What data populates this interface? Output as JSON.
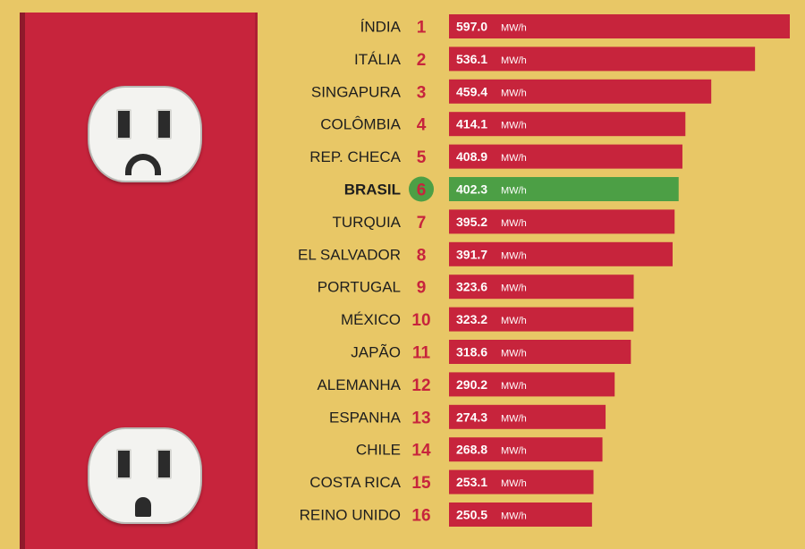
{
  "chart_data": {
    "type": "bar",
    "orientation": "horizontal",
    "unit": "MW/h",
    "xlim": [
      0,
      597.0
    ],
    "colors": {
      "bar": "#c7243c",
      "highlight": "#4c9f45",
      "rank": "#c7243c",
      "background": "#e8c766"
    },
    "highlight": "BRASIL",
    "items": [
      {
        "country": "ÍNDIA",
        "rank": "1",
        "value": 597.0
      },
      {
        "country": "ITÁLIA",
        "rank": "2",
        "value": 536.1
      },
      {
        "country": "SINGAPURA",
        "rank": "3",
        "value": 459.4
      },
      {
        "country": "COLÔMBIA",
        "rank": "4",
        "value": 414.1
      },
      {
        "country": "REP. CHECA",
        "rank": "5",
        "value": 408.9
      },
      {
        "country": "BRASIL",
        "rank": "6",
        "value": 402.3
      },
      {
        "country": "TURQUIA",
        "rank": "7",
        "value": 395.2
      },
      {
        "country": "EL SALVADOR",
        "rank": "8",
        "value": 391.7
      },
      {
        "country": "PORTUGAL",
        "rank": "9",
        "value": 323.6
      },
      {
        "country": "MÉXICO",
        "rank": "10",
        "value": 323.2
      },
      {
        "country": "JAPÃO",
        "rank": "11",
        "value": 318.6
      },
      {
        "country": "ALEMANHA",
        "rank": "12",
        "value": 290.2
      },
      {
        "country": "ESPANHA",
        "rank": "13",
        "value": 274.3
      },
      {
        "country": "CHILE",
        "rank": "14",
        "value": 268.8
      },
      {
        "country": "COSTA RICA",
        "rank": "15",
        "value": 253.1
      },
      {
        "country": "REINO UNIDO",
        "rank": "16",
        "value": 250.5
      }
    ]
  },
  "illustration": {
    "panel_color": "#c7243c",
    "icons": [
      "sad-outlet-icon",
      "surprised-outlet-icon"
    ]
  }
}
